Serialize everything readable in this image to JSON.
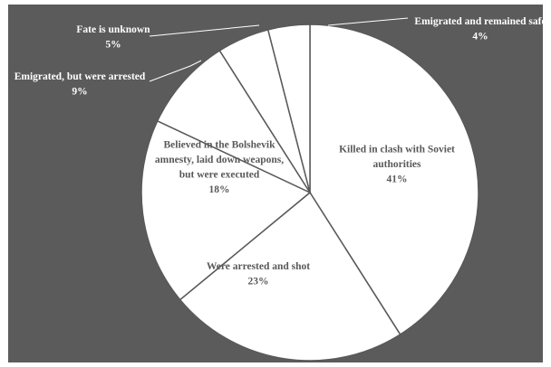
{
  "chart_data": {
    "type": "pie",
    "slices": [
      {
        "lines": [
          "Killed in clash with Soviet",
          "authorities"
        ],
        "value": 41,
        "pct_label": "41%"
      },
      {
        "lines": [
          "Were arrested and shot"
        ],
        "value": 23,
        "pct_label": "23%"
      },
      {
        "lines": [
          "Believed in the Bolshevik",
          "amnesty, laid down weapons,",
          "but were executed"
        ],
        "value": 18,
        "pct_label": "18%"
      },
      {
        "lines": [
          "Emigrated, but were arrested"
        ],
        "value": 9,
        "pct_label": "9%"
      },
      {
        "lines": [
          "Fate is unknown"
        ],
        "value": 5,
        "pct_label": "5%"
      },
      {
        "lines": [
          "Emigrated and remained safe"
        ],
        "value": 4,
        "pct_label": "4%"
      }
    ],
    "colors": {
      "background": "#5b5b5b",
      "slice_fill": "#ffffff",
      "slice_border": "#595959",
      "inside_text": "#595959",
      "outside_text": "#ffffff"
    }
  }
}
